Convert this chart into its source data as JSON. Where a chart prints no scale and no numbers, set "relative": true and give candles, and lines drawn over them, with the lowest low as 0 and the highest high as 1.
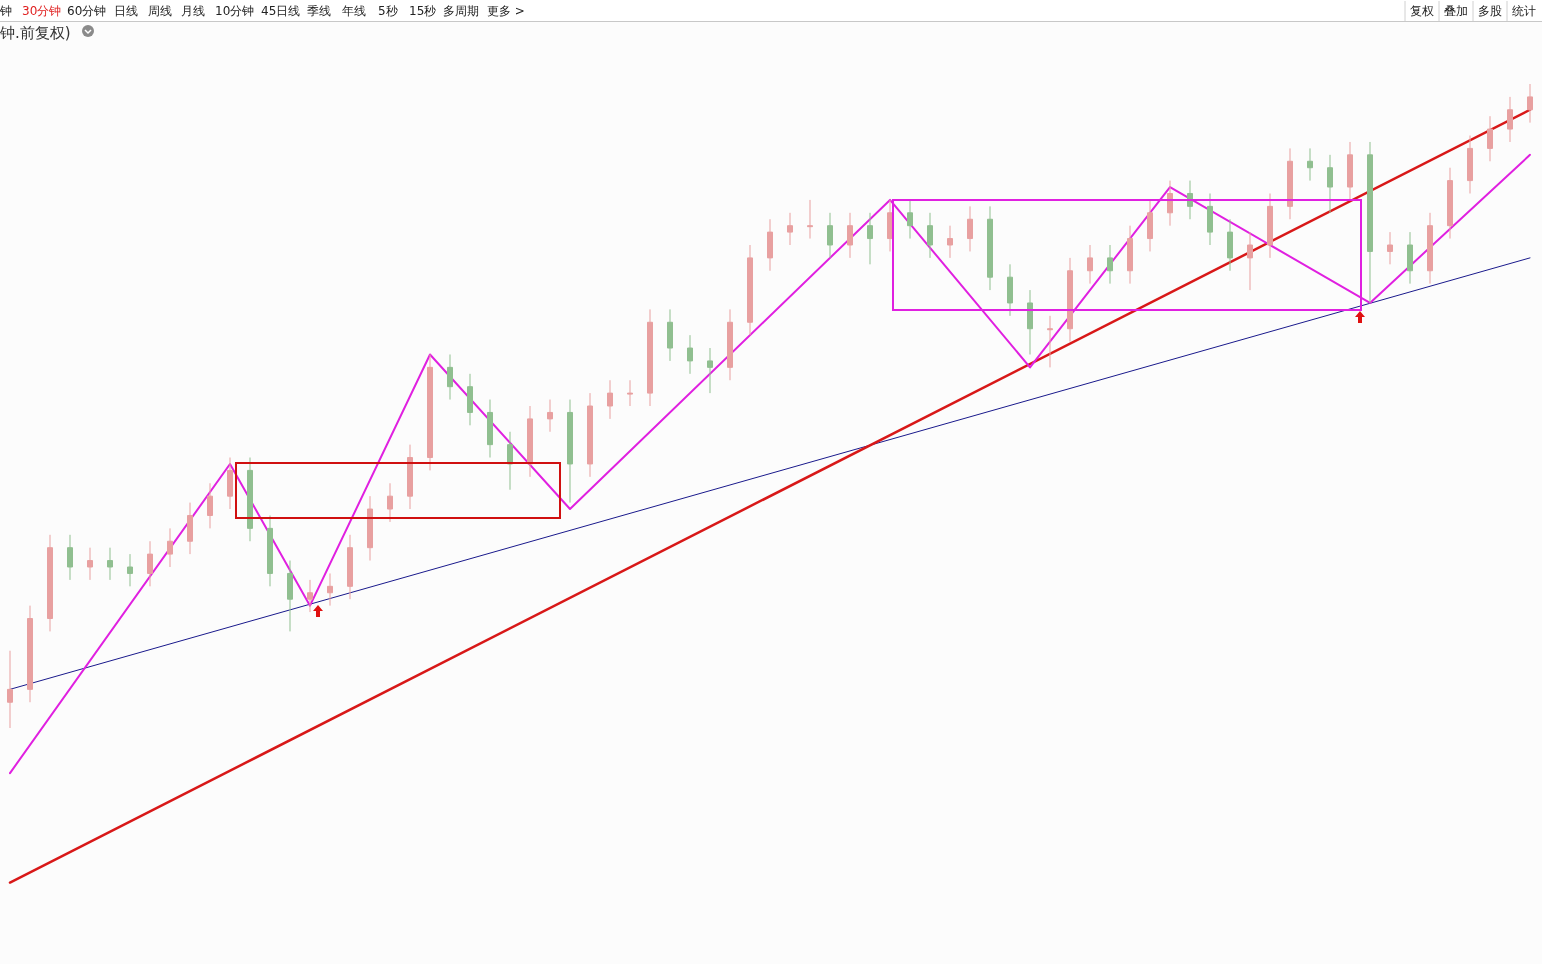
{
  "chart_data": {
    "type": "candlestick",
    "relative": true,
    "title": "钟.前复权)",
    "tick_labels": false,
    "annotations": [
      "钟",
      "30分钟",
      "60分钟",
      "日线",
      "周线",
      "月线",
      "10分钟",
      "45日线",
      "季线",
      "年线",
      "5秒",
      "15秒",
      "多周期",
      "更多 >",
      "复权",
      "叠加",
      "多股",
      "统计"
    ],
    "categories": [
      null,
      null,
      null,
      null,
      null,
      null,
      null,
      null,
      null,
      null,
      null,
      null,
      null,
      null,
      null,
      null,
      null,
      null,
      null,
      null,
      null,
      null,
      null,
      null,
      null,
      null,
      null,
      null,
      null,
      null,
      null,
      null,
      null,
      null,
      null,
      null,
      null,
      null,
      null,
      null,
      null,
      null,
      null,
      null,
      null,
      null,
      null,
      null,
      null,
      null,
      null,
      null,
      null,
      null,
      null,
      null,
      null,
      null,
      null,
      null,
      null,
      null,
      null,
      null,
      null,
      null,
      null,
      null,
      null,
      null,
      null,
      null,
      null,
      null,
      null,
      null,
      null
    ],
    "ohlc": [
      [
        0.04,
        0.12,
        0.0,
        0.06
      ],
      [
        0.06,
        0.19,
        0.04,
        0.17
      ],
      [
        0.17,
        0.3,
        0.15,
        0.28
      ],
      [
        0.28,
        0.3,
        0.23,
        0.25
      ],
      [
        0.25,
        0.28,
        0.23,
        0.26
      ],
      [
        0.26,
        0.28,
        0.23,
        0.25
      ],
      [
        0.25,
        0.27,
        0.22,
        0.24
      ],
      [
        0.24,
        0.29,
        0.22,
        0.27
      ],
      [
        0.27,
        0.31,
        0.25,
        0.29
      ],
      [
        0.29,
        0.35,
        0.27,
        0.33
      ],
      [
        0.33,
        0.38,
        0.31,
        0.36
      ],
      [
        0.36,
        0.42,
        0.34,
        0.4
      ],
      [
        0.4,
        0.42,
        0.29,
        0.31
      ],
      [
        0.31,
        0.33,
        0.22,
        0.24
      ],
      [
        0.24,
        0.26,
        0.15,
        0.2
      ],
      [
        0.2,
        0.23,
        0.18,
        0.21
      ],
      [
        0.21,
        0.24,
        0.19,
        0.22
      ],
      [
        0.22,
        0.3,
        0.2,
        0.28
      ],
      [
        0.28,
        0.36,
        0.26,
        0.34
      ],
      [
        0.34,
        0.38,
        0.32,
        0.36
      ],
      [
        0.36,
        0.44,
        0.34,
        0.42
      ],
      [
        0.42,
        0.58,
        0.4,
        0.56
      ],
      [
        0.56,
        0.58,
        0.51,
        0.53
      ],
      [
        0.53,
        0.55,
        0.47,
        0.49
      ],
      [
        0.49,
        0.51,
        0.42,
        0.44
      ],
      [
        0.44,
        0.46,
        0.37,
        0.41
      ],
      [
        0.41,
        0.5,
        0.39,
        0.48
      ],
      [
        0.48,
        0.51,
        0.46,
        0.49
      ],
      [
        0.49,
        0.51,
        0.35,
        0.41
      ],
      [
        0.41,
        0.52,
        0.39,
        0.5
      ],
      [
        0.5,
        0.54,
        0.48,
        0.52
      ],
      [
        0.52,
        0.54,
        0.5,
        0.52
      ],
      [
        0.52,
        0.65,
        0.5,
        0.63
      ],
      [
        0.63,
        0.65,
        0.57,
        0.59
      ],
      [
        0.59,
        0.61,
        0.55,
        0.57
      ],
      [
        0.57,
        0.59,
        0.52,
        0.56
      ],
      [
        0.56,
        0.65,
        0.54,
        0.63
      ],
      [
        0.63,
        0.75,
        0.61,
        0.73
      ],
      [
        0.73,
        0.79,
        0.71,
        0.77
      ],
      [
        0.77,
        0.8,
        0.75,
        0.78
      ],
      [
        0.78,
        0.82,
        0.76,
        0.78
      ],
      [
        0.78,
        0.8,
        0.73,
        0.75
      ],
      [
        0.75,
        0.8,
        0.73,
        0.78
      ],
      [
        0.78,
        0.8,
        0.72,
        0.76
      ],
      [
        0.76,
        0.82,
        0.74,
        0.8
      ],
      [
        0.8,
        0.82,
        0.76,
        0.78
      ],
      [
        0.78,
        0.8,
        0.73,
        0.75
      ],
      [
        0.75,
        0.78,
        0.73,
        0.76
      ],
      [
        0.76,
        0.81,
        0.74,
        0.79
      ],
      [
        0.79,
        0.81,
        0.68,
        0.7
      ],
      [
        0.7,
        0.72,
        0.64,
        0.66
      ],
      [
        0.66,
        0.68,
        0.58,
        0.62
      ],
      [
        0.62,
        0.64,
        0.56,
        0.62
      ],
      [
        0.62,
        0.73,
        0.6,
        0.71
      ],
      [
        0.71,
        0.75,
        0.69,
        0.73
      ],
      [
        0.73,
        0.75,
        0.69,
        0.71
      ],
      [
        0.71,
        0.78,
        0.69,
        0.76
      ],
      [
        0.76,
        0.82,
        0.74,
        0.8
      ],
      [
        0.8,
        0.85,
        0.78,
        0.83
      ],
      [
        0.83,
        0.85,
        0.79,
        0.81
      ],
      [
        0.81,
        0.83,
        0.75,
        0.77
      ],
      [
        0.77,
        0.79,
        0.71,
        0.73
      ],
      [
        0.73,
        0.77,
        0.68,
        0.75
      ],
      [
        0.75,
        0.83,
        0.73,
        0.81
      ],
      [
        0.81,
        0.9,
        0.79,
        0.88
      ],
      [
        0.88,
        0.9,
        0.85,
        0.87
      ],
      [
        0.87,
        0.89,
        0.8,
        0.84
      ],
      [
        0.84,
        0.91,
        0.82,
        0.89
      ],
      [
        0.89,
        0.91,
        0.66,
        0.74
      ],
      [
        0.74,
        0.77,
        0.72,
        0.75
      ],
      [
        0.75,
        0.77,
        0.69,
        0.71
      ],
      [
        0.71,
        0.8,
        0.69,
        0.78
      ],
      [
        0.78,
        0.87,
        0.76,
        0.85
      ],
      [
        0.85,
        0.92,
        0.83,
        0.9
      ],
      [
        0.9,
        0.95,
        0.88,
        0.93
      ],
      [
        0.93,
        0.98,
        0.91,
        0.96
      ],
      [
        0.96,
        1.0,
        0.94,
        0.98
      ]
    ],
    "colors": [
      "#e8a0a0",
      "#e8a0a0",
      "#e8a0a0",
      "#90bf90",
      "#e8a0a0",
      "#90bf90",
      "#90bf90",
      "#e8a0a0",
      "#e8a0a0",
      "#e8a0a0",
      "#e8a0a0",
      "#e8a0a0",
      "#90bf90",
      "#90bf90",
      "#90bf90",
      "#e8a0a0",
      "#e8a0a0",
      "#e8a0a0",
      "#e8a0a0",
      "#e8a0a0",
      "#e8a0a0",
      "#e8a0a0",
      "#90bf90",
      "#90bf90",
      "#90bf90",
      "#90bf90",
      "#e8a0a0",
      "#e8a0a0",
      "#90bf90",
      "#e8a0a0",
      "#e8a0a0",
      "#e8a0a0",
      "#e8a0a0",
      "#90bf90",
      "#90bf90",
      "#90bf90",
      "#e8a0a0",
      "#e8a0a0",
      "#e8a0a0",
      "#e8a0a0",
      "#e8a0a0",
      "#90bf90",
      "#e8a0a0",
      "#90bf90",
      "#e8a0a0",
      "#90bf90",
      "#90bf90",
      "#e8a0a0",
      "#e8a0a0",
      "#90bf90",
      "#90bf90",
      "#90bf90",
      "#e8a0a0",
      "#e8a0a0",
      "#e8a0a0",
      "#90bf90",
      "#e8a0a0",
      "#e8a0a0",
      "#e8a0a0",
      "#90bf90",
      "#90bf90",
      "#90bf90",
      "#e8a0a0",
      "#e8a0a0",
      "#e8a0a0",
      "#90bf90",
      "#90bf90",
      "#e8a0a0",
      "#90bf90",
      "#e8a0a0",
      "#90bf90",
      "#e8a0a0",
      "#e8a0a0",
      "#e8a0a0",
      "#e8a0a0",
      "#e8a0a0",
      "#e8a0a0"
    ],
    "series": [
      {
        "type": "line",
        "color": "#1a1a8c",
        "values": [
          0.06,
          null,
          null,
          null,
          null,
          null,
          null,
          null,
          null,
          null,
          null,
          null,
          null,
          null,
          null,
          null,
          null,
          null,
          null,
          null,
          null,
          null,
          null,
          null,
          null,
          null,
          null,
          null,
          null,
          null,
          null,
          null,
          null,
          null,
          null,
          null,
          null,
          null,
          null,
          null,
          null,
          null,
          null,
          null,
          null,
          null,
          null,
          null,
          null,
          null,
          null,
          null,
          null,
          null,
          null,
          null,
          null,
          null,
          null,
          null,
          null,
          null,
          null,
          null,
          null,
          null,
          null,
          null,
          null,
          null,
          null,
          null,
          null,
          null,
          null,
          null,
          0.73
        ]
      },
      {
        "type": "line",
        "color": "#d81818",
        "values": [
          -0.24,
          null,
          null,
          null,
          null,
          null,
          null,
          null,
          null,
          null,
          null,
          null,
          null,
          null,
          null,
          null,
          null,
          null,
          null,
          null,
          null,
          null,
          null,
          null,
          null,
          null,
          null,
          null,
          null,
          null,
          null,
          null,
          null,
          null,
          null,
          null,
          null,
          null,
          null,
          null,
          null,
          null,
          null,
          null,
          null,
          null,
          null,
          null,
          null,
          null,
          null,
          null,
          null,
          null,
          null,
          null,
          null,
          null,
          null,
          null,
          null,
          null,
          null,
          null,
          null,
          null,
          null,
          null,
          null,
          null,
          null,
          null,
          null,
          null,
          null,
          null,
          0.96
        ]
      },
      {
        "type": "line",
        "color": "#e020e0",
        "values": [
          -0.07,
          null,
          null,
          null,
          null,
          null,
          null,
          null,
          null,
          null,
          null,
          0.41,
          null,
          null,
          null,
          0.19,
          null,
          null,
          null,
          null,
          null,
          0.58,
          null,
          null,
          null,
          null,
          null,
          null,
          0.34,
          null,
          null,
          null,
          null,
          null,
          null,
          null,
          null,
          null,
          null,
          null,
          null,
          null,
          null,
          null,
          0.82,
          null,
          null,
          null,
          null,
          null,
          null,
          0.56,
          null,
          null,
          null,
          null,
          null,
          null,
          0.84,
          null,
          null,
          null,
          null,
          null,
          null,
          null,
          null,
          null,
          0.66,
          null,
          null,
          null,
          null,
          null,
          null,
          null,
          0.89
        ]
      }
    ]
  }
}
